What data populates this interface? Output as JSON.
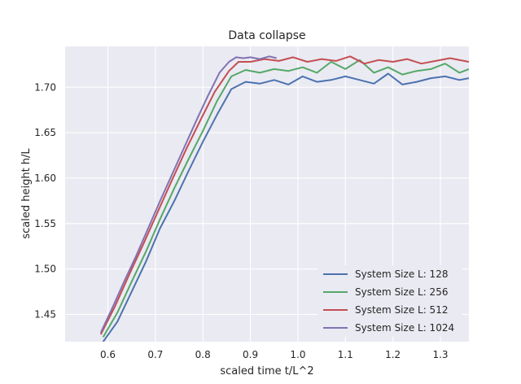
{
  "chart_data": {
    "type": "line",
    "title": "Data collapse",
    "xlabel": "scaled time t/L^2",
    "ylabel": "scaled height h/L",
    "xlim": [
      0.51,
      1.36
    ],
    "ylim": [
      1.42,
      1.745
    ],
    "xticks": [
      0.6,
      0.7,
      0.8,
      0.9,
      1.0,
      1.1,
      1.2,
      1.3
    ],
    "xtick_labels": [
      "0.6",
      "0.7",
      "0.8",
      "0.9",
      "1.0",
      "1.1",
      "1.2",
      "1.3"
    ],
    "yticks": [
      1.45,
      1.5,
      1.55,
      1.6,
      1.65,
      1.7
    ],
    "ytick_labels": [
      "1.45",
      "1.50",
      "1.55",
      "1.60",
      "1.65",
      "1.70"
    ],
    "grid": true,
    "legend_position": "lower-right",
    "series": [
      {
        "name": "System Size L: 128",
        "color": "#4c72b0",
        "x": [
          0.59,
          0.62,
          0.65,
          0.68,
          0.71,
          0.74,
          0.77,
          0.8,
          0.83,
          0.86,
          0.89,
          0.92,
          0.95,
          0.98,
          1.01,
          1.04,
          1.07,
          1.1,
          1.13,
          1.16,
          1.19,
          1.22,
          1.25,
          1.28,
          1.31,
          1.34,
          1.36
        ],
        "y": [
          1.42,
          1.442,
          1.475,
          1.508,
          1.545,
          1.575,
          1.608,
          1.64,
          1.67,
          1.698,
          1.706,
          1.704,
          1.708,
          1.703,
          1.712,
          1.706,
          1.708,
          1.712,
          1.708,
          1.704,
          1.715,
          1.703,
          1.706,
          1.71,
          1.712,
          1.708,
          1.71
        ]
      },
      {
        "name": "System Size L: 256",
        "color": "#55a868",
        "x": [
          0.59,
          0.62,
          0.65,
          0.68,
          0.71,
          0.74,
          0.77,
          0.8,
          0.83,
          0.86,
          0.89,
          0.92,
          0.95,
          0.98,
          1.01,
          1.04,
          1.07,
          1.1,
          1.13,
          1.16,
          1.19,
          1.22,
          1.25,
          1.28,
          1.31,
          1.34,
          1.36
        ],
        "y": [
          1.425,
          1.452,
          1.486,
          1.519,
          1.555,
          1.589,
          1.621,
          1.652,
          1.685,
          1.712,
          1.719,
          1.716,
          1.72,
          1.718,
          1.722,
          1.716,
          1.728,
          1.72,
          1.73,
          1.716,
          1.722,
          1.714,
          1.718,
          1.72,
          1.726,
          1.716,
          1.72
        ]
      },
      {
        "name": "System Size L: 512",
        "color": "#c44e52",
        "x": [
          0.585,
          0.615,
          0.645,
          0.675,
          0.705,
          0.735,
          0.765,
          0.795,
          0.825,
          0.855,
          0.875,
          0.9,
          0.93,
          0.96,
          0.99,
          1.02,
          1.05,
          1.08,
          1.11,
          1.14,
          1.17,
          1.2,
          1.23,
          1.26,
          1.29,
          1.32,
          1.36
        ],
        "y": [
          1.428,
          1.459,
          1.494,
          1.528,
          1.563,
          1.598,
          1.632,
          1.664,
          1.695,
          1.718,
          1.728,
          1.728,
          1.731,
          1.729,
          1.733,
          1.728,
          1.731,
          1.729,
          1.734,
          1.726,
          1.73,
          1.728,
          1.731,
          1.726,
          1.729,
          1.732,
          1.728
        ]
      },
      {
        "name": "System Size L: 1024",
        "color": "#8172b2",
        "x": [
          0.585,
          0.61,
          0.635,
          0.66,
          0.685,
          0.71,
          0.735,
          0.76,
          0.785,
          0.81,
          0.835,
          0.855,
          0.87,
          0.885,
          0.9,
          0.92,
          0.94,
          0.955
        ],
        "y": [
          1.43,
          1.458,
          1.487,
          1.515,
          1.545,
          1.575,
          1.604,
          1.633,
          1.662,
          1.69,
          1.716,
          1.728,
          1.733,
          1.732,
          1.733,
          1.731,
          1.734,
          1.732
        ]
      }
    ]
  }
}
